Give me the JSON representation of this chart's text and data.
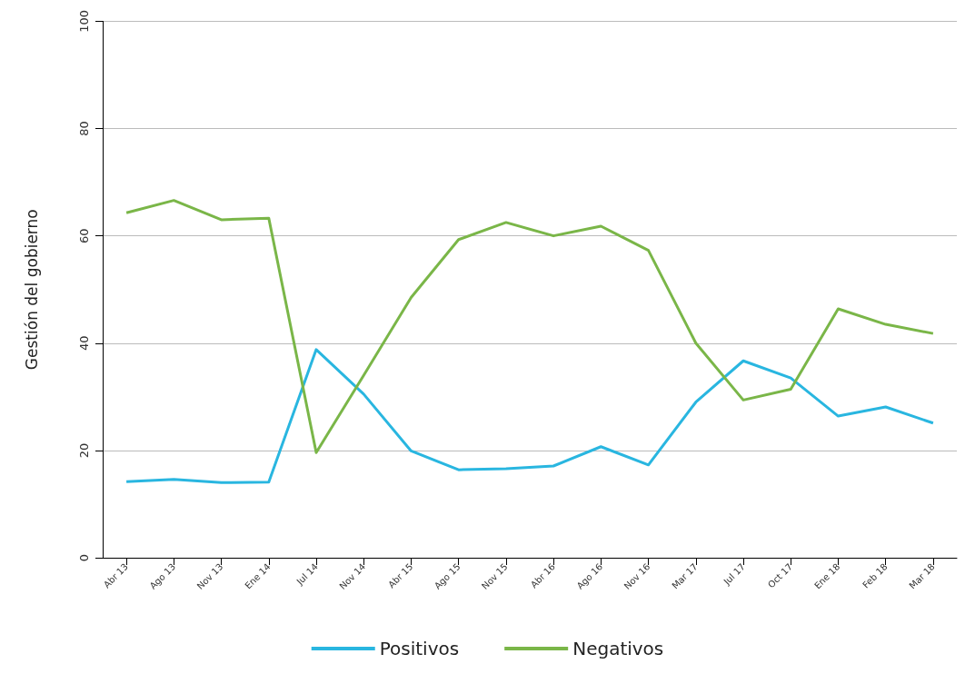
{
  "chart_data": {
    "type": "line",
    "ylabel": "Gestión del gobierno",
    "categories": [
      "Abr 13",
      "Ago 13",
      "Nov 13",
      "Ene 14",
      "Jul 14",
      "Nov 14",
      "Abr 15",
      "Ago 15",
      "Nov 15",
      "Abr 16",
      "Ago 16",
      "Nov 16",
      "Mar 17",
      "Jul 17",
      "Oct 17",
      "Ene 18",
      "Feb 18",
      "Mar 18"
    ],
    "series": [
      {
        "name": "Positivos",
        "color": "#29b6e0",
        "values": [
          14.2,
          14.6,
          14,
          14.1,
          38.8,
          30.5,
          19.9,
          16.4,
          16.6,
          17.1,
          20.7,
          17.3,
          29,
          36.7,
          33.5,
          26.4,
          28.1,
          25.1
        ]
      },
      {
        "name": "Negativos",
        "color": "#7ab648",
        "values": [
          64.3,
          66.6,
          63,
          63.3,
          19.6,
          34,
          48.5,
          59.3,
          62.5,
          60,
          61.8,
          57.3,
          40,
          29.4,
          31.4,
          46.4,
          43.5,
          41.8
        ]
      }
    ],
    "ylim": [
      0,
      100
    ],
    "yticks": [
      0,
      20,
      40,
      60,
      80,
      100
    ],
    "grid": "y",
    "legend": "bottom",
    "marker": "none",
    "line_style": "solid"
  }
}
